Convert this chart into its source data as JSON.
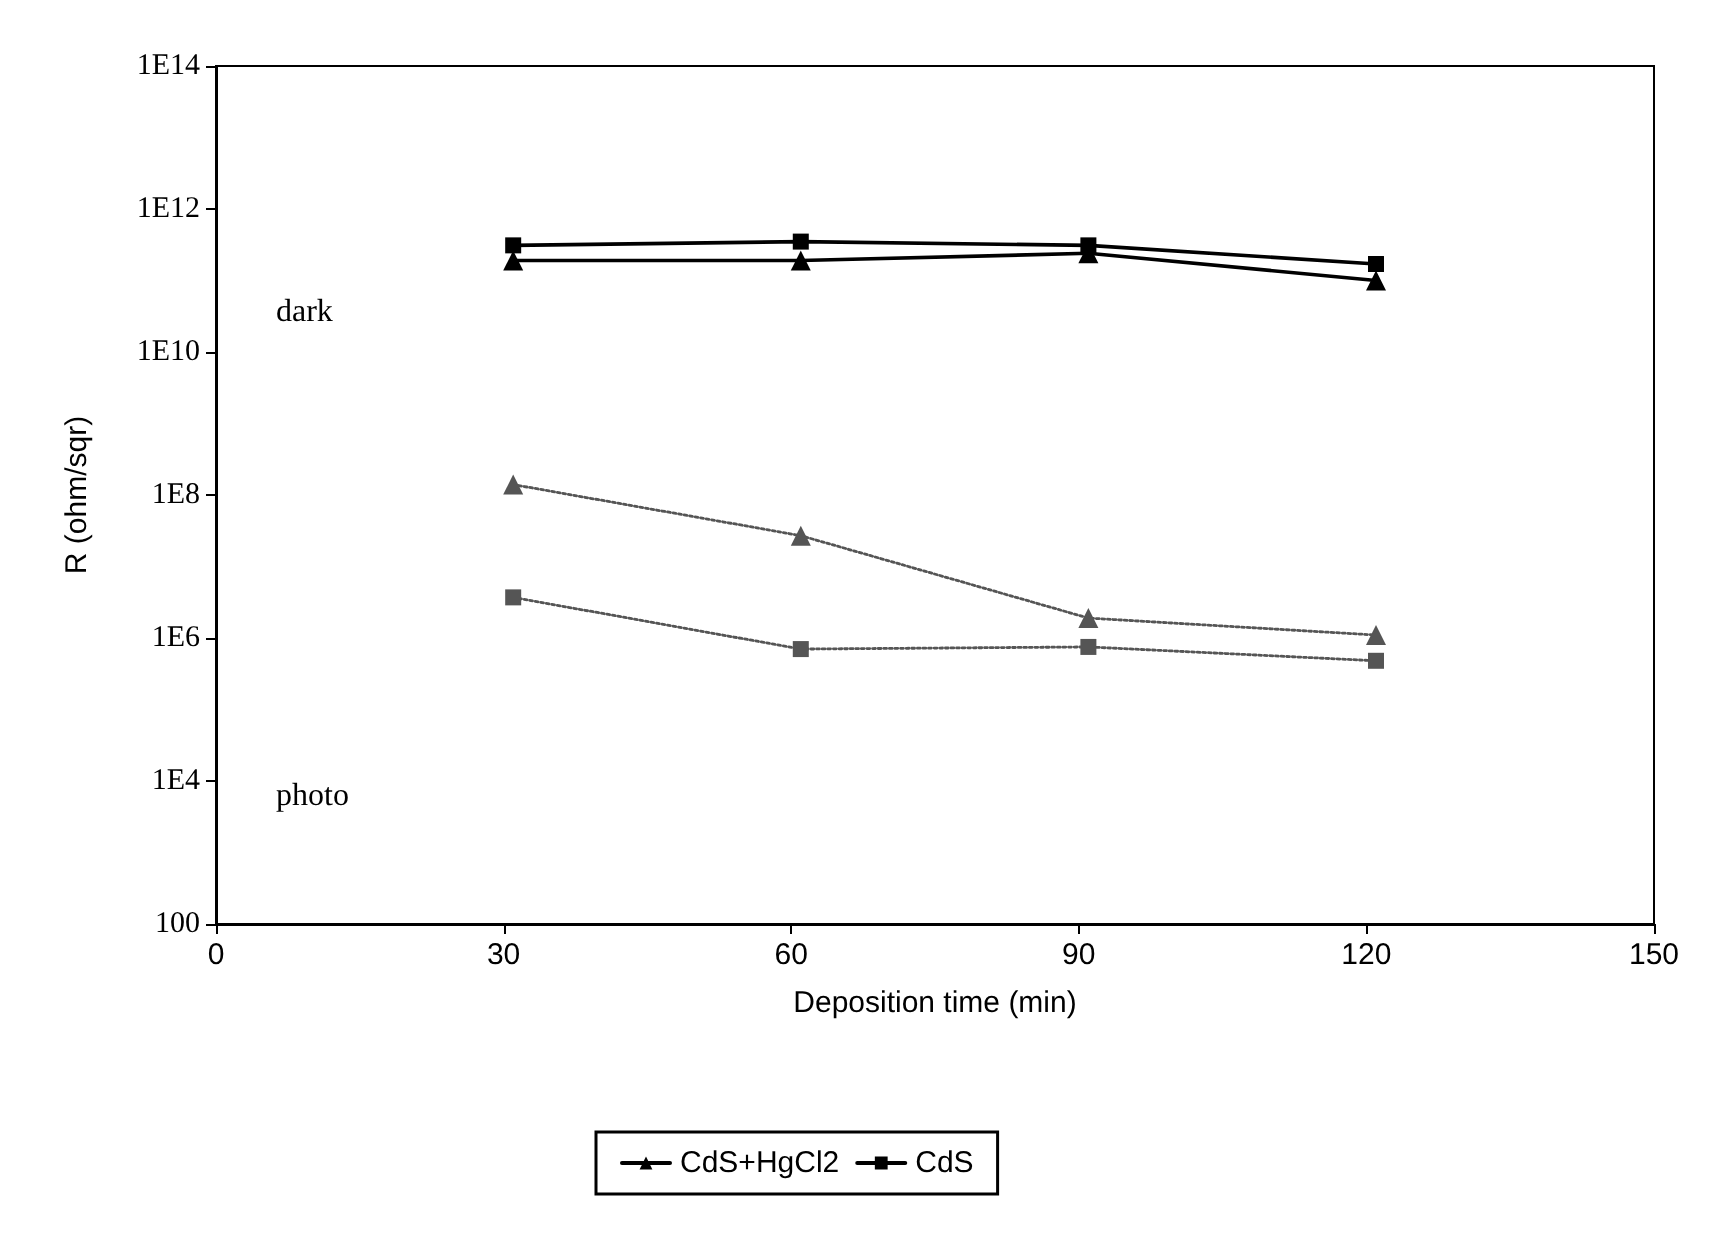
{
  "chart_data": {
    "type": "line",
    "xlabel": "Deposition time (min)",
    "ylabel": "R (ohm/sqr)",
    "log": "y",
    "grid": false,
    "legend": "bottom",
    "x": [
      31,
      61,
      91,
      121
    ],
    "xlim": [
      0,
      150
    ],
    "xticks": [
      0,
      30,
      60,
      90,
      120,
      150
    ],
    "ylim": [
      100,
      100000000000000
    ],
    "yticks": [
      100,
      {
        "value": 10000,
        "label": "1E4"
      },
      {
        "value": 1000000,
        "label": "1E6"
      },
      {
        "value": 100000000,
        "label": "1E8"
      },
      {
        "value": 10000000000,
        "label": "1E10"
      },
      {
        "value": 1000000000000,
        "label": "1E12"
      },
      {
        "value": 100000000000000,
        "label": "1E14"
      }
    ],
    "series": [
      {
        "name": "CdS+HgCl2",
        "color": "#000000",
        "marker": "triangle",
        "line_style": "solid",
        "values": [
          190000000000,
          190000000000,
          240000000000,
          100000000000
        ]
      },
      {
        "name": "CdS",
        "color": "#000000",
        "marker": "square",
        "line_style": "solid",
        "values": [
          310000000000,
          350000000000,
          310000000000,
          170000000000
        ]
      },
      {
        "color": "#555555",
        "marker": "triangle",
        "line_style": "dotted",
        "values": [
          140000000,
          27000000,
          1900000,
          1100000
        ]
      },
      {
        "color": "#555555",
        "marker": "square",
        "line_style": "dotted",
        "values": [
          3700000,
          700000,
          750000,
          480000
        ]
      }
    ],
    "annotations": [
      "dark",
      "photo"
    ]
  }
}
